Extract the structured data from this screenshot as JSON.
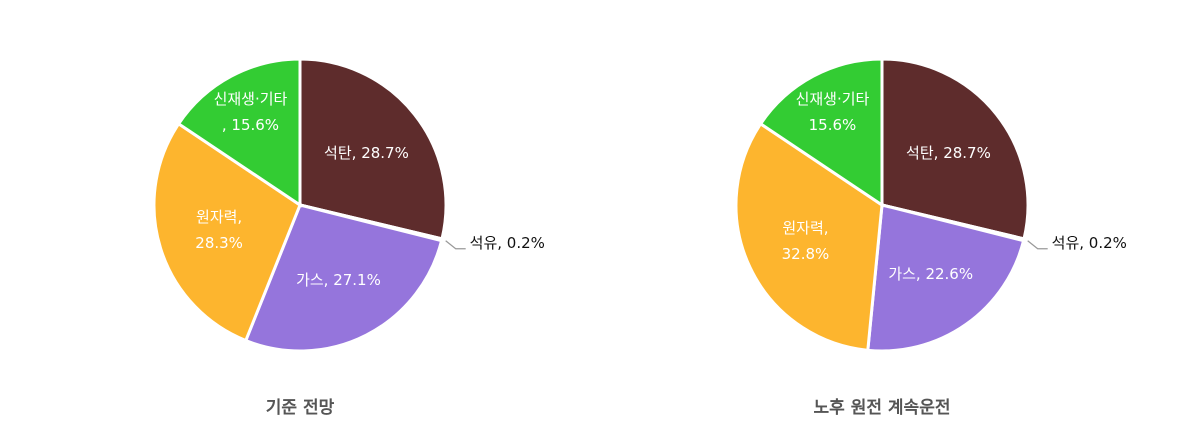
{
  "chart_data": [
    {
      "type": "pie",
      "title": "기준 전망",
      "values": [
        28.7,
        0.2,
        27.1,
        28.3,
        15.6
      ],
      "value_labels": [
        "석탄, 28.7%",
        "석유, 0.2%",
        "가스, 27.1%",
        "원자력,\n28.3%",
        "신재생·기타\n, 15.6%"
      ],
      "colors": [
        "#5e2c2c",
        "#8c8c8c",
        "#9575dc",
        "#fdb52e",
        "#33cc33"
      ]
    },
    {
      "type": "pie",
      "title": "노후 원전 계속운전",
      "values": [
        28.7,
        0.2,
        22.6,
        32.8,
        15.6
      ],
      "value_labels": [
        "석탄, 28.7%",
        "석유, 0.2%",
        "가스, 22.6%",
        "원자력,\n32.8%",
        "신재생·기타\n15.6%"
      ],
      "colors": [
        "#5e2c2c",
        "#8c8c8c",
        "#9575dc",
        "#fdb52e",
        "#33cc33"
      ]
    }
  ]
}
